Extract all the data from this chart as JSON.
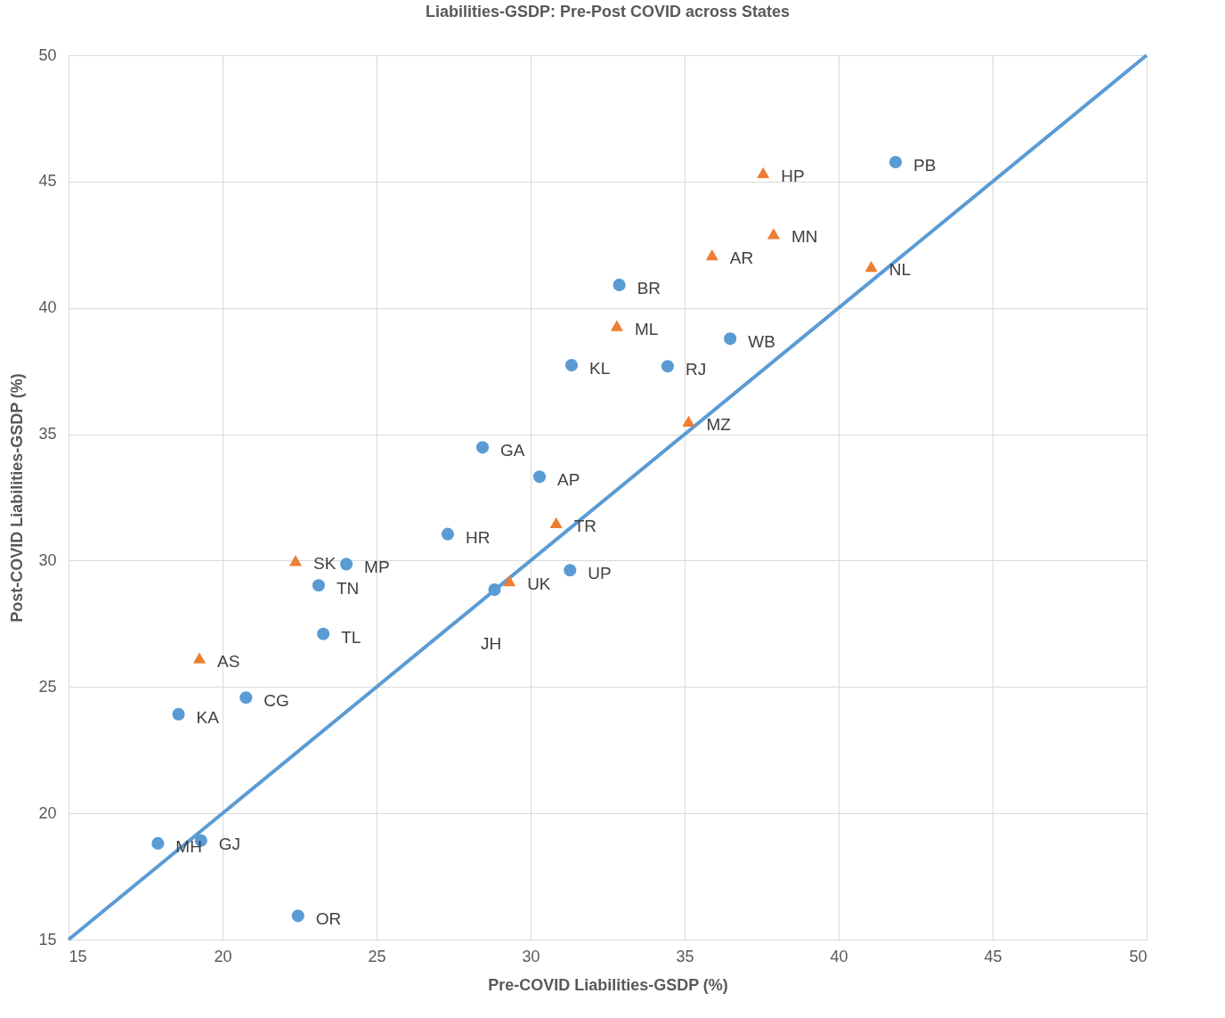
{
  "chart_data": {
    "type": "scatter",
    "title": "Liabilities-GSDP: Pre-Post COVID across States",
    "xlabel": "Pre-COVID Liabilities-GSDP (%)",
    "ylabel": "Post-COVID Liabilities-GSDP (%)",
    "xlim": [
      15,
      50
    ],
    "ylim": [
      15,
      50
    ],
    "xticks": [
      15,
      20,
      25,
      30,
      35,
      40,
      45,
      50
    ],
    "yticks": [
      15,
      20,
      25,
      30,
      35,
      40,
      45,
      50
    ],
    "grid": true,
    "series": [
      {
        "marker": "circle",
        "color": "#5b9bd5",
        "x": [
          41.85,
          32.88,
          36.48,
          31.33,
          34.45,
          28.44,
          30.29,
          27.31,
          24.02,
          23.12,
          31.28,
          28.83,
          23.27,
          20.76,
          18.57,
          17.9,
          19.3,
          22.45
        ],
        "values": [
          45.77,
          40.91,
          38.78,
          37.73,
          37.69,
          34.48,
          33.32,
          31.05,
          29.86,
          29.02,
          29.62,
          28.85,
          27.1,
          24.58,
          23.92,
          18.81,
          18.92,
          15.94
        ]
      },
      {
        "marker": "triangle",
        "color": "#ed7d31",
        "x": [
          37.55,
          37.89,
          35.89,
          41.06,
          32.8,
          35.13,
          30.83,
          29.31,
          22.37,
          19.25
        ],
        "values": [
          45.35,
          42.94,
          42.1,
          41.64,
          39.3,
          35.52,
          31.5,
          29.2,
          30.0,
          26.15
        ]
      },
      {
        "type": "line",
        "marker": "none",
        "color": "#5b9bd5",
        "x": [
          15,
          50
        ],
        "values": [
          15,
          50
        ]
      }
    ],
    "annotations": [
      {
        "text": "PB",
        "x": 41.85,
        "y": 45.77
      },
      {
        "text": "BR",
        "x": 32.88,
        "y": 40.91
      },
      {
        "text": "WB",
        "x": 36.48,
        "y": 38.78
      },
      {
        "text": "KL",
        "x": 31.33,
        "y": 37.73
      },
      {
        "text": "RJ",
        "x": 34.45,
        "y": 37.69
      },
      {
        "text": "GA",
        "x": 28.44,
        "y": 34.48
      },
      {
        "text": "AP",
        "x": 30.29,
        "y": 33.32
      },
      {
        "text": "HR",
        "x": 27.31,
        "y": 31.05
      },
      {
        "text": "MP",
        "x": 24.02,
        "y": 29.86
      },
      {
        "text": "TN",
        "x": 23.12,
        "y": 29.02
      },
      {
        "text": "UP",
        "x": 31.28,
        "y": 29.62
      },
      {
        "text": "TL",
        "x": 23.27,
        "y": 27.1
      },
      {
        "text": "CG",
        "x": 20.76,
        "y": 24.58
      },
      {
        "text": "KA",
        "x": 18.57,
        "y": 23.92
      },
      {
        "text": "MH",
        "x": 17.9,
        "y": 18.81
      },
      {
        "text": "GJ",
        "x": 19.3,
        "y": 18.92
      },
      {
        "text": "OR",
        "x": 22.45,
        "y": 15.94
      },
      {
        "text": "HP",
        "x": 37.55,
        "y": 45.35
      },
      {
        "text": "MN",
        "x": 37.89,
        "y": 42.94
      },
      {
        "text": "AR",
        "x": 35.89,
        "y": 42.1
      },
      {
        "text": "NL",
        "x": 41.06,
        "y": 41.64
      },
      {
        "text": "ML",
        "x": 32.8,
        "y": 39.3
      },
      {
        "text": "MZ",
        "x": 35.13,
        "y": 35.52
      },
      {
        "text": "TR",
        "x": 30.83,
        "y": 31.5
      },
      {
        "text": "UK",
        "x": 29.31,
        "y": 29.2
      },
      {
        "text": "SK",
        "x": 22.37,
        "y": 30.0
      },
      {
        "text": "AS",
        "x": 19.25,
        "y": 26.15
      },
      "JH"
    ]
  }
}
